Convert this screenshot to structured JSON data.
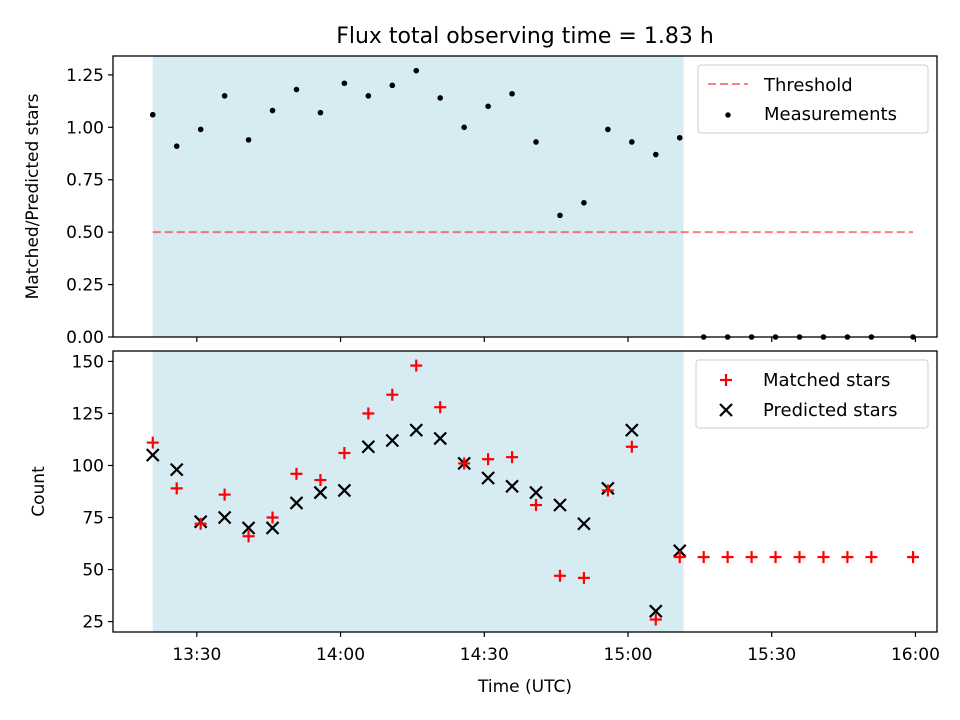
{
  "title": "Flux total observing time = 1.83 h",
  "colors": {
    "shade": "#add8e6",
    "threshold": "#ff0000",
    "measurement": "#000000",
    "matched": "#ff0000",
    "predicted": "#000000"
  },
  "chart_data": [
    {
      "type": "scatter",
      "ylabel": "Matched/Predicted stars",
      "xlim_min": [
        13,
        12.5
      ],
      "xlim_max": [
        16,
        4.5
      ],
      "ylim": [
        0,
        1.34
      ],
      "yticks": [
        0,
        0.25,
        0.5,
        0.75,
        1.0,
        1.25
      ],
      "ytick_labels": [
        "0.00",
        "0.25",
        "0.50",
        "0.75",
        "1.00",
        "1.25"
      ],
      "shaded_span_min": [
        [
          13,
          20.8
        ],
        [
          15,
          11.6
        ]
      ],
      "threshold": {
        "value": 0.5,
        "x_start_min": [
          13,
          20.8
        ],
        "x_end_min": [
          15,
          59.5
        ]
      },
      "legend": {
        "position": "top-right",
        "entries": [
          "Threshold",
          "Measurements"
        ]
      },
      "series": [
        {
          "name": "Measurements",
          "x_min": [
            800.8,
            805.8,
            810.8,
            815.8,
            820.8,
            825.8,
            830.8,
            835.8,
            840.8,
            845.8,
            850.8,
            855.8,
            860.8,
            865.8,
            870.8,
            875.8,
            880.8,
            885.8,
            890.8,
            895.8,
            900.8,
            905.8,
            910.8,
            915.8,
            920.8,
            925.8,
            930.8,
            935.8,
            940.8,
            945.8,
            950.8,
            959.5
          ],
          "y": [
            1.06,
            0.91,
            0.99,
            1.15,
            0.94,
            1.08,
            1.18,
            1.07,
            1.21,
            1.15,
            1.2,
            1.27,
            1.14,
            1.0,
            1.1,
            1.16,
            0.93,
            0.58,
            0.64,
            0.99,
            0.93,
            0.87,
            0.95,
            0,
            0,
            0,
            0,
            0,
            0,
            0,
            0,
            0
          ]
        }
      ]
    },
    {
      "type": "scatter",
      "ylabel": "Count",
      "xlabel": "Time (UTC)",
      "ylim": [
        20,
        155
      ],
      "yticks": [
        25,
        50,
        75,
        100,
        125,
        150
      ],
      "ytick_labels": [
        "25",
        "50",
        "75",
        "100",
        "125",
        "150"
      ],
      "xtick_min": [
        810,
        840,
        870,
        900,
        930,
        960
      ],
      "xtick_labels": [
        "13:30",
        "14:00",
        "14:30",
        "15:00",
        "15:30",
        "16:00"
      ],
      "legend": {
        "position": "top-right",
        "entries": [
          "Matched stars",
          "Predicted stars"
        ]
      },
      "series": [
        {
          "name": "Matched stars",
          "x_min": [
            800.8,
            805.8,
            810.8,
            815.8,
            820.8,
            825.8,
            830.8,
            835.8,
            840.8,
            845.8,
            850.8,
            855.8,
            860.8,
            865.8,
            870.8,
            875.8,
            880.8,
            885.8,
            890.8,
            895.8,
            900.8,
            905.8,
            910.8,
            915.8,
            920.8,
            925.8,
            930.8,
            935.8,
            940.8,
            945.8,
            950.8,
            959.5
          ],
          "y": [
            111,
            89,
            72,
            86,
            66,
            75,
            96,
            93,
            106,
            125,
            134,
            148,
            128,
            101,
            103,
            104,
            81,
            47,
            46,
            88,
            109,
            26,
            56,
            56,
            56,
            56,
            56,
            56,
            56,
            56,
            56,
            56
          ]
        },
        {
          "name": "Predicted stars",
          "x_min": [
            800.8,
            805.8,
            810.8,
            815.8,
            820.8,
            825.8,
            830.8,
            835.8,
            840.8,
            845.8,
            850.8,
            855.8,
            860.8,
            865.8,
            870.8,
            875.8,
            880.8,
            885.8,
            890.8,
            895.8,
            900.8,
            905.8,
            910.8
          ],
          "y": [
            105,
            98,
            73,
            75,
            70,
            70,
            82,
            87,
            88,
            109,
            112,
            117,
            113,
            101,
            94,
            90,
            87,
            81,
            72,
            89,
            117,
            30,
            59
          ]
        }
      ]
    }
  ]
}
